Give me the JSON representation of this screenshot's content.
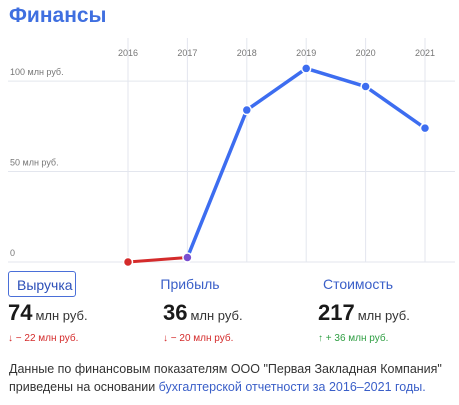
{
  "header": {
    "title": "Финансы"
  },
  "chart_data": {
    "type": "line",
    "categories": [
      "2016",
      "2017",
      "2018",
      "2019",
      "2020",
      "2021"
    ],
    "yticks": [
      "0",
      "50 млн руб.",
      "100 млн руб."
    ],
    "ylim": [
      0,
      110
    ],
    "series": [
      {
        "values": [
          0,
          2.5,
          84,
          107,
          97,
          74
        ],
        "color": "#3d6df0",
        "negative_segment_color": "#d42b2b"
      }
    ],
    "grid": true
  },
  "tabs": [
    {
      "label": "Выручка",
      "active": true
    },
    {
      "label": "Прибыль",
      "active": false
    },
    {
      "label": "Стоимость",
      "active": false
    }
  ],
  "metrics": [
    {
      "value": "74",
      "unit": "млн руб.",
      "delta": "↓ − 22 млн руб.",
      "trend": "down"
    },
    {
      "value": "36",
      "unit": "млн руб.",
      "delta": "↓ − 20 млн руб.",
      "trend": "down"
    },
    {
      "value": "217",
      "unit": "млн руб.",
      "delta": "↑ + 36 млн руб.",
      "trend": "up"
    }
  ],
  "footnote": {
    "text": "Данные по финансовым показателям ООО \"Первая Закладная Компания\" приведены на основании ",
    "link": "бухгалтерской отчетности за 2016–2021 годы."
  }
}
